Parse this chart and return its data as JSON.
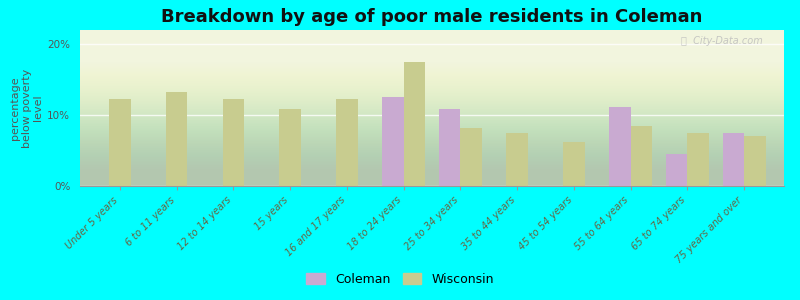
{
  "title": "Breakdown by age of poor male residents in Coleman",
  "ylabel": "percentage\nbelow poverty\nlevel",
  "categories": [
    "Under 5 years",
    "6 to 11 years",
    "12 to 14 years",
    "15 years",
    "16 and 17 years",
    "18 to 24 years",
    "25 to 34 years",
    "35 to 44 years",
    "45 to 54 years",
    "55 to 64 years",
    "65 to 74 years",
    "75 years and over"
  ],
  "coleman": [
    null,
    null,
    null,
    null,
    null,
    12.5,
    10.8,
    null,
    null,
    11.2,
    4.5,
    7.5
  ],
  "wisconsin": [
    12.2,
    13.2,
    12.2,
    10.8,
    12.2,
    17.5,
    8.2,
    7.5,
    6.2,
    8.5,
    7.5,
    7.0
  ],
  "coleman_color": "#c9aad1",
  "wisconsin_color": "#c8cc8f",
  "background_color": "#00ffff",
  "ylim": [
    0,
    22
  ],
  "yticks": [
    0,
    10,
    20
  ],
  "ytick_labels": [
    "0%",
    "10%",
    "20%"
  ],
  "bar_width": 0.38,
  "title_fontsize": 13,
  "axis_label_fontsize": 8,
  "tick_label_fontsize": 7,
  "legend_fontsize": 9,
  "watermark": "ⓘ  City-Data.com"
}
